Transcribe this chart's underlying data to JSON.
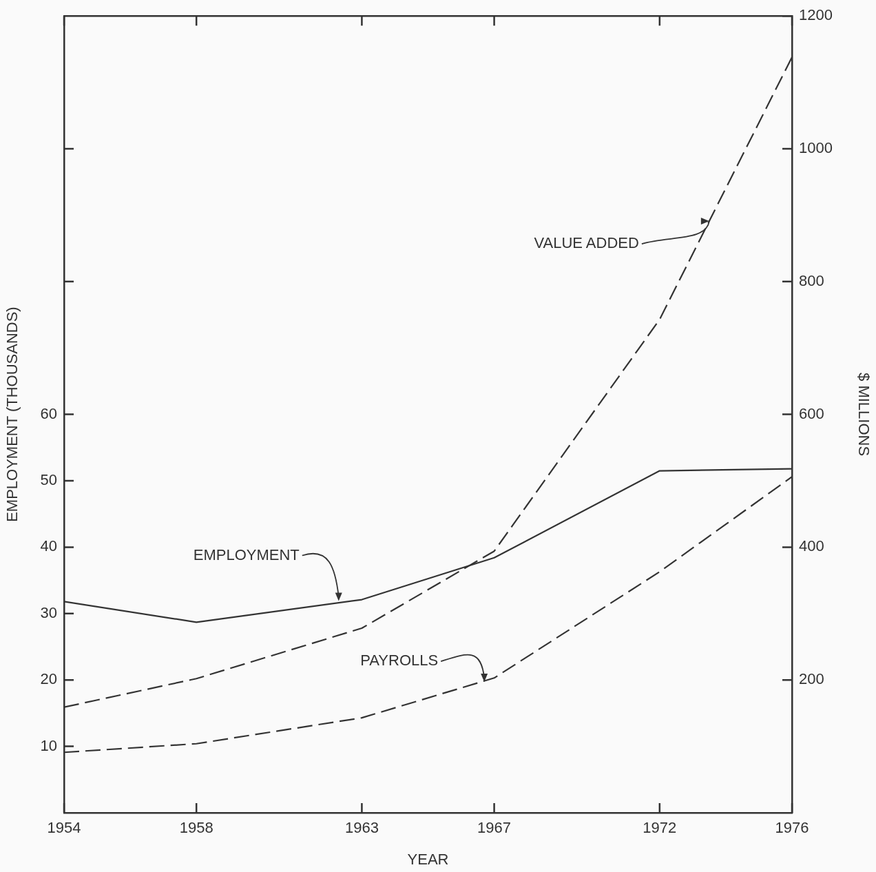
{
  "chart_data": {
    "type": "line",
    "xlabel": "YEAR",
    "ylabel": "EMPLOYMENT (THOUSANDS)",
    "y2label": "$ MILLIONS",
    "x": [
      1954,
      1958,
      1963,
      1967,
      1972,
      1976
    ],
    "xlim": [
      1954,
      1976
    ],
    "xticks": [
      1954,
      1958,
      1963,
      1967,
      1972,
      1976
    ],
    "ylim": [
      0,
      120
    ],
    "yticks": [
      10,
      20,
      30,
      40,
      50,
      60,
      {
        "value": 80,
        "label": null
      },
      {
        "value": 100,
        "label": null
      }
    ],
    "y2lim": [
      0,
      1200
    ],
    "y2ticks": [
      200,
      400,
      600,
      800,
      1000,
      1200
    ],
    "series": [
      {
        "color": "#333333",
        "values": [
          31.8,
          28.7,
          32.1,
          38.4,
          51.5,
          51.8
        ],
        "line_style": "solid"
      },
      {
        "color": "#333333",
        "values": [
          159,
          202,
          278,
          394,
          743,
          1138
        ],
        "axis": "y2",
        "line_style": "dashed"
      },
      {
        "color": "#333333",
        "values": [
          91,
          104,
          143,
          203,
          363,
          506
        ],
        "axis": "y2",
        "line_style": "dashed"
      }
    ],
    "annotations": [
      {
        "text": "EMPLOYMENT",
        "x": 1962.3,
        "y": 31.9
      },
      {
        "text": "VALUE ADDED",
        "x": 1973.5,
        "y": 89.1
      },
      {
        "text": "PAYROLLS",
        "x": 1966.7,
        "y": 19.7
      }
    ],
    "marker": "none",
    "legend": false
  }
}
